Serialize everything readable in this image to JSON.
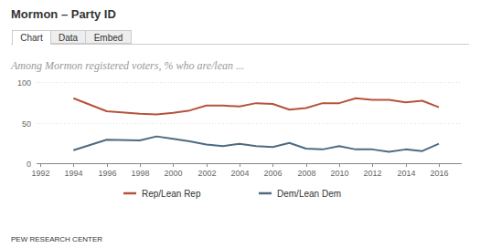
{
  "chart_data": {
    "type": "line",
    "title": "Mormon – Party ID",
    "tabs": [
      "Chart",
      "Data",
      "Embed"
    ],
    "subtitle": "Among Mormon registered voters, % who are/lean ...",
    "source": "PEW RESEARCH CENTER",
    "x": [
      1994,
      1996,
      1998,
      1999,
      2000,
      2001,
      2002,
      2003,
      2004,
      2005,
      2006,
      2007,
      2008,
      2009,
      2010,
      2011,
      2012,
      2013,
      2014,
      2015,
      2016
    ],
    "series": [
      {
        "name": "Rep/Lean Rep",
        "color": "#b5533c",
        "values": [
          80,
          64,
          61,
          60,
          62,
          65,
          71,
          71,
          70,
          74,
          73,
          66,
          68,
          74,
          74,
          80,
          78,
          78,
          75,
          77,
          69
        ]
      },
      {
        "name": "Dem/Lean Dem",
        "color": "#4d6a80",
        "values": [
          16,
          29,
          28,
          33,
          30,
          27,
          23,
          21,
          24,
          21,
          20,
          25,
          18,
          17,
          21,
          17,
          17,
          14,
          17,
          15,
          24
        ]
      }
    ],
    "xlim": [
      1992,
      2016
    ],
    "xticks": [
      1992,
      1994,
      1996,
      1998,
      2000,
      2002,
      2004,
      2006,
      2008,
      2010,
      2012,
      2014,
      2016
    ],
    "ylim": [
      0,
      100
    ],
    "yticks": [
      0,
      50,
      100
    ],
    "grid": true,
    "legend": "bottom"
  }
}
